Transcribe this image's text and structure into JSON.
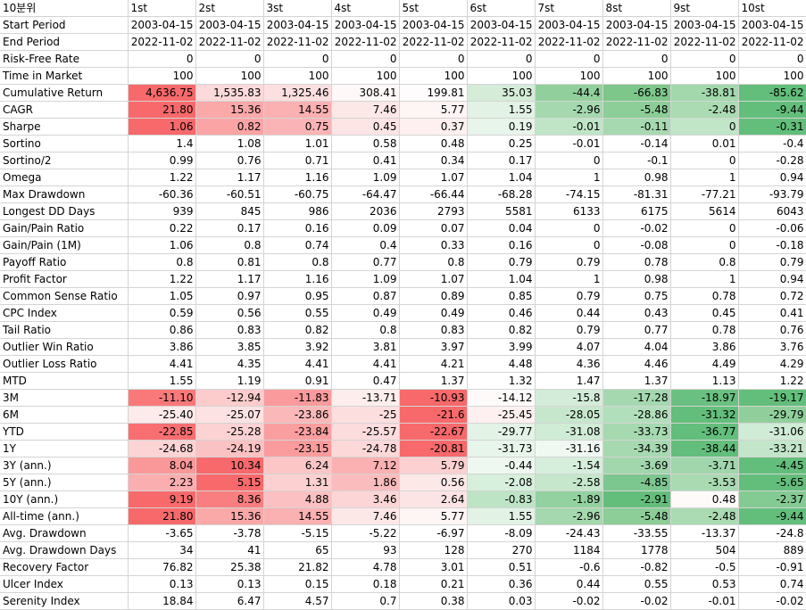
{
  "corner": "10분위",
  "columns": [
    "1st",
    "2st",
    "3st",
    "4st",
    "5st",
    "6st",
    "7st",
    "8st",
    "9st",
    "10st"
  ],
  "rows": [
    {
      "label": "Start Period",
      "values": [
        "2003-04-15",
        "2003-04-15",
        "2003-04-15",
        "2003-04-15",
        "2003-04-15",
        "2003-04-15",
        "2003-04-15",
        "2003-04-15",
        "2003-04-15",
        "2003-04-15"
      ]
    },
    {
      "label": "End Period",
      "values": [
        "2022-11-02",
        "2022-11-02",
        "2022-11-02",
        "2022-11-02",
        "2022-11-02",
        "2022-11-02",
        "2022-11-02",
        "2022-11-02",
        "2022-11-02",
        "2022-11-02"
      ]
    },
    {
      "label": "Risk-Free Rate",
      "values": [
        "0",
        "0",
        "0",
        "0",
        "0",
        "0",
        "0",
        "0",
        "0",
        "0"
      ]
    },
    {
      "label": "Time in Market",
      "values": [
        "100",
        "100",
        "100",
        "100",
        "100",
        "100",
        "100",
        "100",
        "100",
        "100"
      ]
    },
    {
      "label": "Cumulative Return",
      "values": [
        "4,636.75",
        "1,535.83",
        "1,325.46",
        "308.41",
        "199.81",
        "35.03",
        "-44.4",
        "-66.83",
        "-38.81",
        "-85.62"
      ],
      "colors": [
        "#f8696b",
        "#fcd9da",
        "#fcdfe0",
        "#fef8f8",
        "#fefcfc",
        "#d4ecd8",
        "#91d09c",
        "#7dc78a",
        "#a3d8ac",
        "#63be7b"
      ]
    },
    {
      "label": "CAGR",
      "values": [
        "21.80",
        "15.36",
        "14.55",
        "7.46",
        "5.77",
        "1.55",
        "-2.96",
        "-5.48",
        "-2.48",
        "-9.44"
      ],
      "colors": [
        "#f8696b",
        "#fba8a9",
        "#fbb0b1",
        "#fde8e8",
        "#fef5f5",
        "#e2f2e5",
        "#a5d8ae",
        "#8ccd98",
        "#aadbb2",
        "#63be7b"
      ]
    },
    {
      "label": "Sharpe",
      "values": [
        "1.06",
        "0.82",
        "0.75",
        "0.45",
        "0.37",
        "0.19",
        "-0.01",
        "-0.11",
        "0",
        "-0.31"
      ],
      "colors": [
        "#f8696b",
        "#fba4a5",
        "#fbb4b5",
        "#fde4e5",
        "#fef0f0",
        "#e8f5ea",
        "#bfe4c6",
        "#a7d9b0",
        "#c0e5c7",
        "#63be7b"
      ]
    },
    {
      "label": "Sortino",
      "values": [
        "1.4",
        "1.08",
        "1.01",
        "0.58",
        "0.48",
        "0.25",
        "-0.01",
        "-0.14",
        "0.01",
        "-0.4"
      ]
    },
    {
      "label": "Sortino/2",
      "values": [
        "0.99",
        "0.76",
        "0.71",
        "0.41",
        "0.34",
        "0.17",
        "0",
        "-0.1",
        "0",
        "-0.28"
      ]
    },
    {
      "label": "Omega",
      "values": [
        "1.22",
        "1.17",
        "1.16",
        "1.09",
        "1.07",
        "1.04",
        "1",
        "0.98",
        "1",
        "0.94"
      ]
    },
    {
      "label": "Max Drawdown",
      "values": [
        "-60.36",
        "-60.51",
        "-60.75",
        "-64.47",
        "-66.44",
        "-68.28",
        "-74.15",
        "-81.31",
        "-77.21",
        "-93.79"
      ]
    },
    {
      "label": "Longest DD Days",
      "values": [
        "939",
        "845",
        "986",
        "2036",
        "2793",
        "5581",
        "6133",
        "6175",
        "5614",
        "6043"
      ]
    },
    {
      "label": "Gain/Pain Ratio",
      "values": [
        "0.22",
        "0.17",
        "0.16",
        "0.09",
        "0.07",
        "0.04",
        "0",
        "-0.02",
        "0",
        "-0.06"
      ]
    },
    {
      "label": "Gain/Pain (1M)",
      "values": [
        "1.06",
        "0.8",
        "0.74",
        "0.4",
        "0.33",
        "0.16",
        "0",
        "-0.08",
        "0",
        "-0.18"
      ]
    },
    {
      "label": "Payoff Ratio",
      "values": [
        "0.8",
        "0.81",
        "0.8",
        "0.77",
        "0.8",
        "0.79",
        "0.79",
        "0.78",
        "0.8",
        "0.79"
      ]
    },
    {
      "label": "Profit Factor",
      "values": [
        "1.22",
        "1.17",
        "1.16",
        "1.09",
        "1.07",
        "1.04",
        "1",
        "0.98",
        "1",
        "0.94"
      ]
    },
    {
      "label": "Common Sense Ratio",
      "values": [
        "1.05",
        "0.97",
        "0.95",
        "0.87",
        "0.89",
        "0.85",
        "0.79",
        "0.75",
        "0.78",
        "0.72"
      ]
    },
    {
      "label": "CPC Index",
      "values": [
        "0.59",
        "0.56",
        "0.55",
        "0.49",
        "0.49",
        "0.46",
        "0.44",
        "0.43",
        "0.45",
        "0.41"
      ]
    },
    {
      "label": "Tail Ratio",
      "values": [
        "0.86",
        "0.83",
        "0.82",
        "0.8",
        "0.83",
        "0.82",
        "0.79",
        "0.77",
        "0.78",
        "0.76"
      ]
    },
    {
      "label": "Outlier Win Ratio",
      "values": [
        "3.86",
        "3.85",
        "3.92",
        "3.81",
        "3.97",
        "3.99",
        "4.07",
        "4.04",
        "3.86",
        "3.76"
      ]
    },
    {
      "label": "Outlier Loss Ratio",
      "values": [
        "4.41",
        "4.35",
        "4.41",
        "4.41",
        "4.21",
        "4.48",
        "4.36",
        "4.46",
        "4.49",
        "4.29"
      ]
    },
    {
      "label": "MTD",
      "values": [
        "1.55",
        "1.19",
        "0.91",
        "0.47",
        "1.37",
        "1.32",
        "1.47",
        "1.37",
        "1.13",
        "1.22"
      ]
    },
    {
      "label": "3M",
      "values": [
        "-11.10",
        "-12.94",
        "-11.83",
        "-13.71",
        "-10.93",
        "-14.12",
        "-15.8",
        "-17.28",
        "-18.97",
        "-19.17"
      ],
      "colors": [
        "#f9797b",
        "#fccccd",
        "#fa9a9c",
        "#fdeded",
        "#f8696b",
        "#fefafa",
        "#d3ecd9",
        "#a6d8b0",
        "#6ac081",
        "#63be7b"
      ]
    },
    {
      "label": "6M",
      "values": [
        "-25.40",
        "-25.07",
        "-23.86",
        "-25",
        "-21.6",
        "-25.45",
        "-28.05",
        "-28.86",
        "-31.32",
        "-29.79"
      ],
      "colors": [
        "#fdeaea",
        "#fce2e2",
        "#fbb8b9",
        "#fcdedf",
        "#f8696b",
        "#fef0f0",
        "#c7e7cd",
        "#b2dfbb",
        "#63be7b",
        "#90cf9c"
      ]
    },
    {
      "label": "YTD",
      "values": [
        "-22.85",
        "-25.28",
        "-23.84",
        "-25.57",
        "-22.67",
        "-29.77",
        "-31.08",
        "-33.73",
        "-36.77",
        "-31.06"
      ],
      "colors": [
        "#f96f71",
        "#fcd2d3",
        "#fa9ea0",
        "#fcdcdd",
        "#f8696b",
        "#e3f3e6",
        "#d0ebd6",
        "#a6d9b0",
        "#63be7b",
        "#d0ebd6"
      ]
    },
    {
      "label": "1Y",
      "values": [
        "-24.68",
        "-24.19",
        "-23.15",
        "-24.78",
        "-20.81",
        "-31.73",
        "-31.16",
        "-34.39",
        "-38.44",
        "-33.21"
      ],
      "colors": [
        "#fcd4d5",
        "#fbc2c3",
        "#fa9c9d",
        "#fcd8d9",
        "#f8696b",
        "#e8f5eb",
        "#f0f8f2",
        "#a7d9b1",
        "#63be7b",
        "#c3e6ca"
      ]
    },
    {
      "label": "3Y (ann.)",
      "values": [
        "8.04",
        "10.34",
        "6.24",
        "7.12",
        "5.79",
        "-0.44",
        "-1.54",
        "-3.69",
        "-3.71",
        "-4.45"
      ],
      "colors": [
        "#fa9899",
        "#f8696b",
        "#fcc6c7",
        "#fbb0b1",
        "#fcd0d1",
        "#eef8f0",
        "#d6eedc",
        "#a2d7ad",
        "#a1d6ac",
        "#63be7b"
      ]
    },
    {
      "label": "5Y (ann.)",
      "values": [
        "2.23",
        "5.15",
        "1.31",
        "1.86",
        "0.56",
        "-2.08",
        "-2.58",
        "-4.85",
        "-3.53",
        "-5.65"
      ],
      "colors": [
        "#fbaeaf",
        "#f8696b",
        "#fcd0d1",
        "#fbbcbd",
        "#fde8e8",
        "#d7efdd",
        "#c6e7cc",
        "#7cc790",
        "#a9dab2",
        "#63be7b"
      ]
    },
    {
      "label": "10Y (ann.)",
      "values": [
        "9.19",
        "8.36",
        "4.88",
        "3.46",
        "2.64",
        "-0.83",
        "-1.89",
        "-2.91",
        "0.48",
        "-2.37"
      ],
      "colors": [
        "#f8696b",
        "#f97e80",
        "#fbc0c1",
        "#fcd6d7",
        "#fde4e4",
        "#bee4c6",
        "#93d1a0",
        "#63be7b",
        "#fefafa",
        "#83ca93"
      ]
    },
    {
      "label": "All-time (ann.)",
      "values": [
        "21.80",
        "15.36",
        "14.55",
        "7.46",
        "5.77",
        "1.55",
        "-2.96",
        "-5.48",
        "-2.48",
        "-9.44"
      ],
      "colors": [
        "#f8696b",
        "#fba8a9",
        "#fbb0b1",
        "#fde8e8",
        "#fef5f5",
        "#e2f2e5",
        "#a5d8ae",
        "#8ccd98",
        "#aadbb2",
        "#63be7b"
      ]
    },
    {
      "label": "Avg. Drawdown",
      "values": [
        "-3.65",
        "-3.78",
        "-5.15",
        "-5.22",
        "-6.97",
        "-8.09",
        "-24.43",
        "-33.55",
        "-13.37",
        "-24.8"
      ]
    },
    {
      "label": "Avg. Drawdown Days",
      "values": [
        "34",
        "41",
        "65",
        "93",
        "128",
        "270",
        "1184",
        "1778",
        "504",
        "889"
      ]
    },
    {
      "label": "Recovery Factor",
      "values": [
        "76.82",
        "25.38",
        "21.82",
        "4.78",
        "3.01",
        "0.51",
        "-0.6",
        "-0.82",
        "-0.5",
        "-0.91"
      ]
    },
    {
      "label": "Ulcer Index",
      "values": [
        "0.13",
        "0.13",
        "0.15",
        "0.18",
        "0.21",
        "0.36",
        "0.44",
        "0.55",
        "0.53",
        "0.74"
      ]
    },
    {
      "label": "Serenity Index",
      "values": [
        "18.84",
        "6.47",
        "4.57",
        "0.7",
        "0.38",
        "0.03",
        "-0.02",
        "-0.02",
        "-0.01",
        "-0.02"
      ]
    }
  ]
}
